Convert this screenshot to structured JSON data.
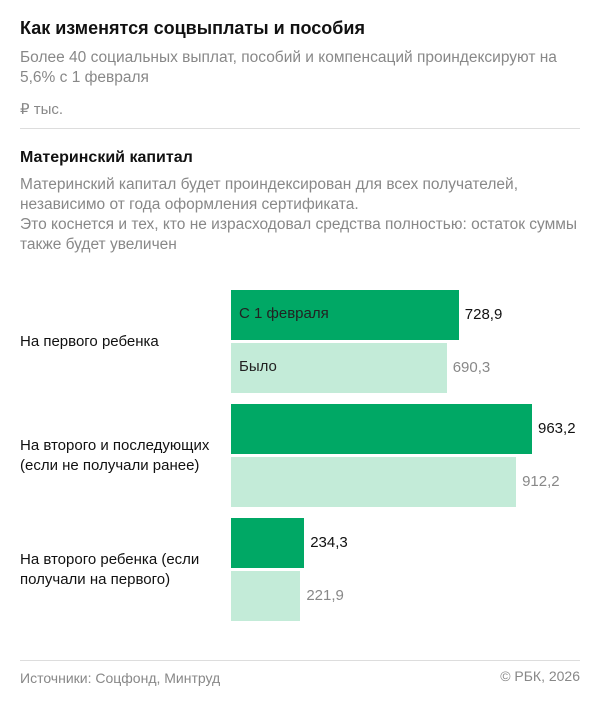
{
  "header": {
    "title": "Как изменятся соцвыплаты и пособия",
    "subtitle": "Более 40 социальных выплат, пособий и компенсаций проиндексируют на 5,6% с 1 февраля",
    "unit": "₽ тыс."
  },
  "section": {
    "title": "Материнский капитал",
    "description_1": "Материнский капитал будет проиндексирован для всех получателей, независимо от года оформления сертификата.",
    "description_2": "Это коснется и тех, кто не израсходовал средства полностью: остаток суммы также будет увеличен"
  },
  "chart_data": {
    "type": "bar",
    "orientation": "horizontal",
    "categories": [
      "На первого ребенка",
      "На второго и последующих (если не получали ранее)",
      "На второго ребенка (если получали на первого)"
    ],
    "series": [
      {
        "name": "С 1 февраля",
        "values": [
          728.9,
          963.2,
          234.3
        ],
        "labels": [
          "728,9",
          "963,2",
          "234,3"
        ],
        "color": "#00a865"
      },
      {
        "name": "Было",
        "values": [
          690.3,
          912.2,
          221.9
        ],
        "labels": [
          "690,3",
          "912,2",
          "221,9"
        ],
        "color": "#c3ebd8"
      }
    ]
  },
  "footer": {
    "source": "Источники: Соцфонд, Минтруд",
    "copyright": "© РБК, 2026"
  }
}
